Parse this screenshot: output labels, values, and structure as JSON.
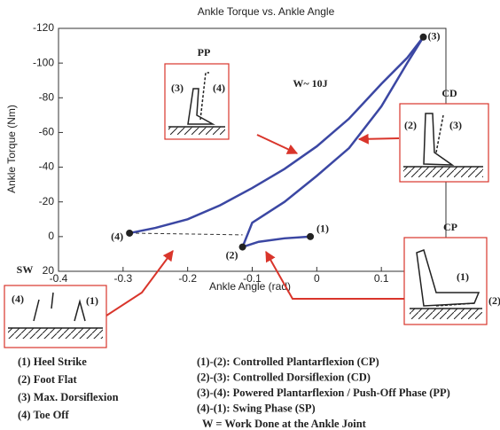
{
  "chart_data": {
    "type": "line",
    "title": "Ankle Torque vs. Ankle Angle",
    "xlabel": "Ankle Angle (rad)",
    "ylabel": "Ankle Torque (Nm)",
    "xlim": [
      -0.4,
      0.2
    ],
    "xticks": [
      -0.4,
      -0.3,
      -0.2,
      -0.1,
      0,
      0.1
    ],
    "ylim": [
      20,
      -120
    ],
    "yticks": [
      20,
      0,
      -20,
      -40,
      -60,
      -80,
      -100,
      -120
    ],
    "series": [
      {
        "color": "#3b47a3",
        "dash": false,
        "x": [
          -0.29,
          -0.25,
          -0.2,
          -0.15,
          -0.1,
          -0.05,
          0,
          0.05,
          0.1,
          0.14,
          0.165
        ],
        "values": [
          -2,
          -5,
          -10,
          -18,
          -28,
          -39,
          -52,
          -68,
          -88,
          -103,
          -115
        ]
      },
      {
        "color": "#3b47a3",
        "dash": false,
        "x": [
          -0.01,
          -0.05,
          -0.09,
          -0.115,
          -0.1,
          -0.05,
          0,
          0.05,
          0.1,
          0.14,
          0.165
        ],
        "values": [
          0,
          1,
          3,
          6,
          -8,
          -20,
          -35,
          -51,
          -75,
          -100,
          -115
        ]
      },
      {
        "color": "#333333",
        "dash": true,
        "x": [
          -0.29,
          -0.2,
          -0.115
        ],
        "values": [
          -2,
          -1.5,
          -1
        ]
      }
    ],
    "points": [
      {
        "label": "(1)",
        "x": -0.01,
        "y": 0
      },
      {
        "label": "(2)",
        "x": -0.115,
        "y": 6
      },
      {
        "label": "(3)",
        "x": 0.165,
        "y": -115
      },
      {
        "label": "(4)",
        "x": -0.29,
        "y": -2
      }
    ],
    "annotation": "W~ 10J",
    "insets": [
      {
        "title": "PP",
        "labels": [
          "(3)",
          "(4)"
        ]
      },
      {
        "title": "CD",
        "labels": [
          "(2)",
          "(3)"
        ]
      },
      {
        "title": "CP",
        "labels": [
          "(1)",
          "(2)"
        ]
      },
      {
        "title": "SW",
        "labels": [
          "(4)",
          "(1)"
        ]
      }
    ],
    "notes_left": [
      "(1) Heel Strike",
      "(2) Foot Flat",
      "(3) Max. Dorsiflexion",
      "(4) Toe Off"
    ],
    "notes_right": [
      "(1)-(2): Controlled Plantarflexion (CP)",
      "(2)-(3): Controlled Dorsiflexion (CD)",
      "(3)-(4): Powered Plantarflexion / Push-Off Phase (PP)",
      "(4)-(1): Swing Phase (SP)",
      "W = Work Done at the Ankle Joint"
    ]
  }
}
